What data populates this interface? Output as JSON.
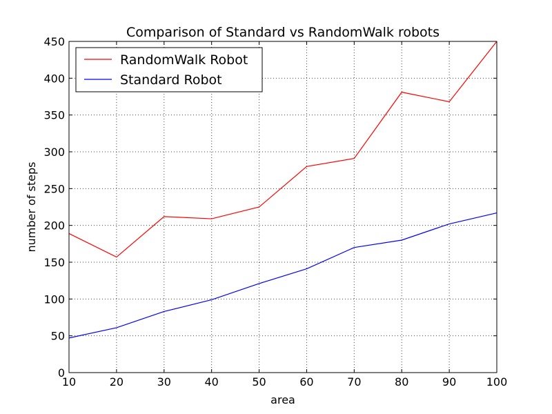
{
  "chart_data": {
    "type": "line",
    "title": "Comparison of Standard vs RandomWalk robots",
    "xlabel": "area",
    "ylabel": "number of steps",
    "xlim": [
      10,
      100
    ],
    "ylim": [
      0,
      450
    ],
    "x_ticks": [
      10,
      20,
      30,
      40,
      50,
      60,
      70,
      80,
      90,
      100
    ],
    "y_ticks": [
      0,
      50,
      100,
      150,
      200,
      250,
      300,
      350,
      400,
      450
    ],
    "grid": true,
    "legend_position": "top-left",
    "x": [
      10,
      20,
      30,
      40,
      50,
      60,
      70,
      80,
      90,
      100
    ],
    "series": [
      {
        "name": "RandomWalk Robot",
        "color": "#ff0000",
        "values": [
          189,
          157,
          212,
          209,
          225,
          280,
          291,
          381,
          368,
          450
        ]
      },
      {
        "name": "Standard Robot",
        "color": "#0000ff",
        "values": [
          47,
          61,
          83,
          99,
          121,
          141,
          170,
          180,
          202,
          217
        ]
      }
    ]
  }
}
